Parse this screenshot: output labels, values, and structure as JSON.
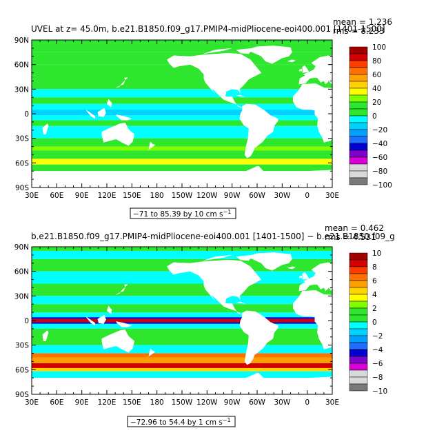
{
  "palette": [
    "#ffffff",
    "#7a7a7a",
    "#d9d9d9",
    "#d600d6",
    "#7f00c8",
    "#0000d2",
    "#1e6eff",
    "#00a0ff",
    "#00d2ff",
    "#00ffff",
    "#2ee62e",
    "#80ff00",
    "#ffff00",
    "#ffd200",
    "#ffa000",
    "#ff7000",
    "#ff3c00",
    "#d20000",
    "#a00000"
  ],
  "chart_data": [
    {
      "type": "heatmap",
      "title": "UVEL at z=  45.0m, b.e21.B1850.f09_g17.PMIP4-midPliocene-eoi400.001 [1401-1500]",
      "stats": [
        "mean = 1.236",
        "rms = 8.233"
      ],
      "x_ticks": [
        "30E",
        "60E",
        "90E",
        "120E",
        "150E",
        "180",
        "150W",
        "120W",
        "90W",
        "60W",
        "30W",
        "0",
        "30E"
      ],
      "y_ticks": [
        "90N",
        "60N",
        "30N",
        "0",
        "30S",
        "60S",
        "90S"
      ],
      "colorbar_labels": [
        "100",
        "80",
        "60",
        "40",
        "20",
        "0",
        "−20",
        "−40",
        "−60",
        "−80",
        "−100"
      ],
      "contour_info": "−71 to 85.39 by 10 cm s",
      "contour_unit_sup": "−1",
      "value_range": [
        -71,
        85.39
      ],
      "interval": 10
    },
    {
      "type": "heatmap",
      "title": "b.e21.B1850.f09_g17.PMIP4-midPliocene-eoi400.001 [1401-1500] − b.e21.B1850.f09_g",
      "stats": [
        "mean = 0.462",
        "rms = 4.531"
      ],
      "x_ticks": [
        "30E",
        "60E",
        "90E",
        "120E",
        "150E",
        "180",
        "150W",
        "120W",
        "90W",
        "60W",
        "30W",
        "0",
        "30E"
      ],
      "y_ticks": [
        "90N",
        "60N",
        "30N",
        "0",
        "30S",
        "60S",
        "90S"
      ],
      "colorbar_labels": [
        "10",
        "8",
        "6",
        "4",
        "2",
        "0",
        "−2",
        "−4",
        "−6",
        "−8",
        "−10"
      ],
      "contour_info": "−72.96 to 54.4 by 1 cm s",
      "contour_unit_sup": "−1",
      "value_range": [
        -72.96,
        54.4
      ],
      "interval": 1
    }
  ]
}
